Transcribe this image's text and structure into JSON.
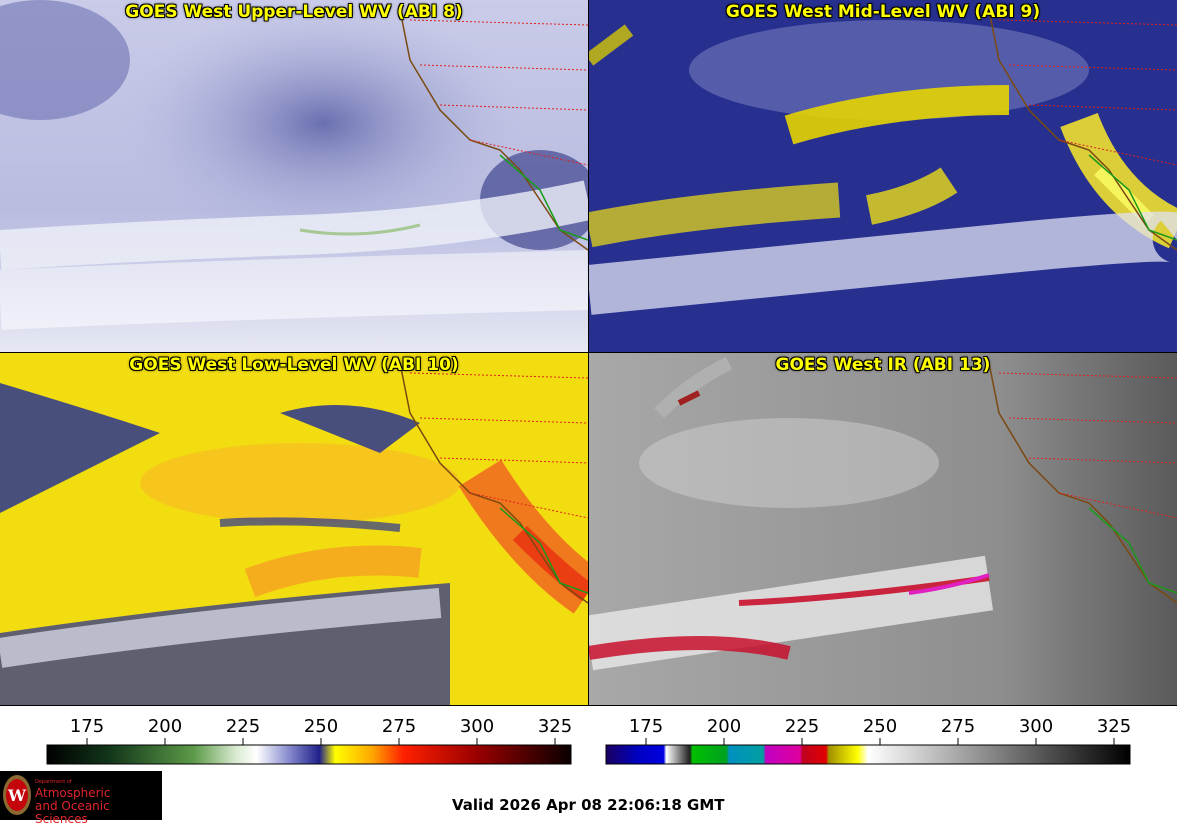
{
  "panels": [
    {
      "title": "GOES West Upper-Level WV (ABI 8)"
    },
    {
      "title": "GOES West Mid-Level WV (ABI 9)"
    },
    {
      "title": "GOES West Low-Level WV (ABI 10)"
    },
    {
      "title": "GOES West IR (ABI 13)"
    }
  ],
  "colorbars": [
    {
      "ticks": [
        "175",
        "200",
        "225",
        "250",
        "275",
        "300",
        "325"
      ]
    },
    {
      "ticks": [
        "175",
        "200",
        "225",
        "250",
        "275",
        "300",
        "325"
      ]
    }
  ],
  "logo": {
    "dept_line1": "Department of",
    "name_line1": "Atmospheric",
    "name_line2": "and Oceanic Sciences"
  },
  "valid_time": "Valid 2026 Apr 08 22:06:18 GMT"
}
